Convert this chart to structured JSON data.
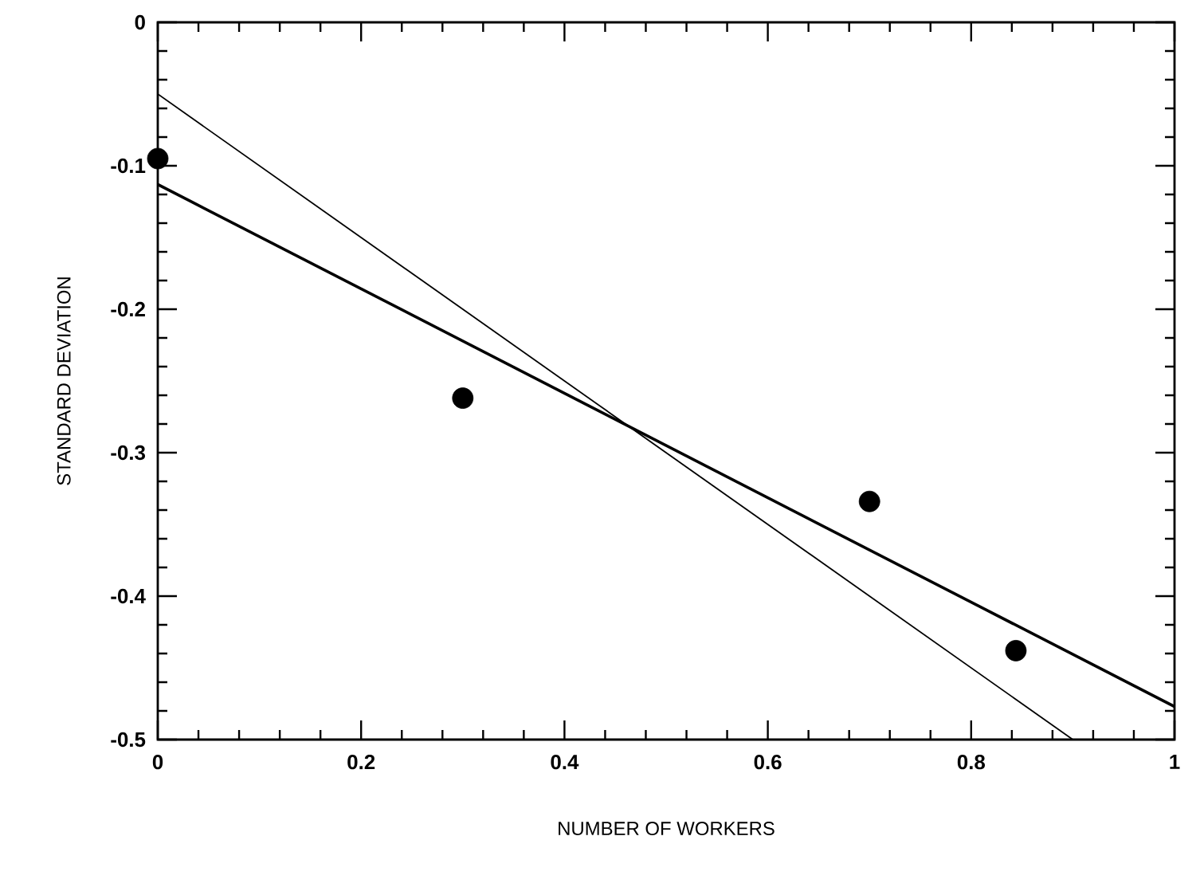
{
  "chart_data": {
    "type": "scatter",
    "xlabel": "NUMBER OF WORKERS",
    "ylabel": "STANDARD DEVIATION",
    "xlim": [
      0,
      1
    ],
    "ylim": [
      -0.5,
      0
    ],
    "xticks": [
      0,
      0.2,
      0.4,
      0.6,
      0.8,
      1
    ],
    "yticks": [
      -0.5,
      -0.4,
      -0.3,
      -0.2,
      -0.1,
      0
    ],
    "series": [
      {
        "color": "#000000",
        "marker": "circle",
        "x": [
          0,
          0.3,
          0.7,
          0.844
        ],
        "values": [
          -0.095,
          -0.262,
          -0.334,
          -0.438
        ]
      },
      {
        "type": "line",
        "color": "#000000",
        "marker": "none",
        "line_style": "solid",
        "x": [
          0,
          0.9
        ],
        "values": [
          -0.05,
          -0.5
        ]
      },
      {
        "type": "line",
        "color": "#000000",
        "marker": "none",
        "line_style": "solid",
        "x": [
          0,
          1
        ],
        "values": [
          -0.113,
          -0.477
        ]
      }
    ]
  }
}
